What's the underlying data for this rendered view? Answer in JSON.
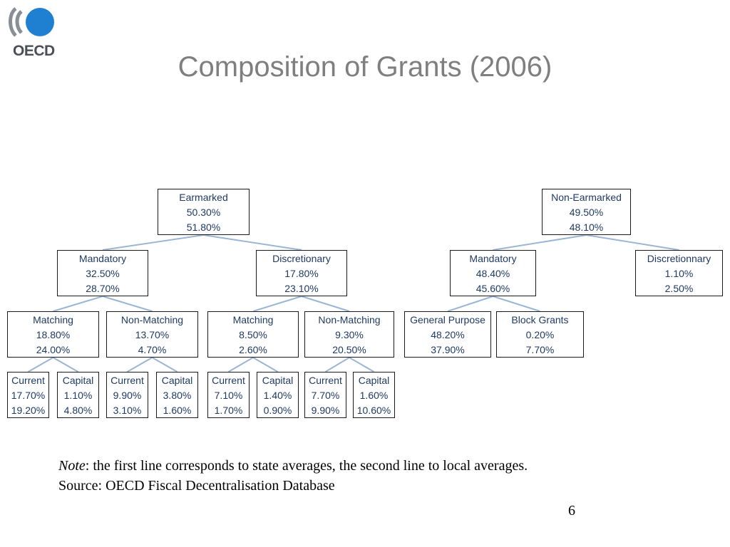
{
  "title": "Composition of Grants (2006)",
  "logo": {
    "text": "OECD"
  },
  "colors": {
    "connector": "#9ab5d6",
    "node_text": "#1f3a63",
    "title": "#7f7f7f"
  },
  "tree": {
    "earmarked": {
      "label": "Earmarked",
      "state": "50.30%",
      "local": "51.80%"
    },
    "e_mandatory": {
      "label": "Mandatory",
      "state": "32.50%",
      "local": "28.70%"
    },
    "e_discretionary": {
      "label": "Discretionary",
      "state": "17.80%",
      "local": "23.10%"
    },
    "em_matching": {
      "label": "Matching",
      "state": "18.80%",
      "local": "24.00%"
    },
    "em_nonmatching": {
      "label": "Non-Matching",
      "state": "13.70%",
      "local": "4.70%"
    },
    "ed_matching": {
      "label": "Matching",
      "state": "8.50%",
      "local": "2.60%"
    },
    "ed_nonmatching": {
      "label": "Non-Matching",
      "state": "9.30%",
      "local": "20.50%"
    },
    "emm_current": {
      "label": "Current",
      "state": "17.70%",
      "local": "19.20%"
    },
    "emm_capital": {
      "label": "Capital",
      "state": "1.10%",
      "local": "4.80%"
    },
    "emn_current": {
      "label": "Current",
      "state": "9.90%",
      "local": "3.10%"
    },
    "emn_capital": {
      "label": "Capital",
      "state": "3.80%",
      "local": "1.60%"
    },
    "edm_current": {
      "label": "Current",
      "state": "7.10%",
      "local": "1.70%"
    },
    "edm_capital": {
      "label": "Capital",
      "state": "1.40%",
      "local": "0.90%"
    },
    "edn_current": {
      "label": "Current",
      "state": "7.70%",
      "local": "9.90%"
    },
    "edn_capital": {
      "label": "Capital",
      "state": "1.60%",
      "local": "10.60%"
    },
    "nonearmarked": {
      "label": "Non-Earmarked",
      "state": "49.50%",
      "local": "48.10%"
    },
    "n_mandatory": {
      "label": "Mandatory",
      "state": "48.40%",
      "local": "45.60%"
    },
    "n_discretionary": {
      "label": "Discretionnary",
      "state": "1.10%",
      "local": "2.50%"
    },
    "nm_general": {
      "label": "General Purpose",
      "state": "48.20%",
      "local": "37.90%"
    },
    "nm_block": {
      "label": "Block Grants",
      "state": "0.20%",
      "local": "7.70%"
    }
  },
  "note": {
    "label": "Note",
    "text": ": the first line corresponds to state averages, the second line to local averages.",
    "source": "Source: OECD Fiscal Decentralisation Database"
  },
  "page_number": "6"
}
